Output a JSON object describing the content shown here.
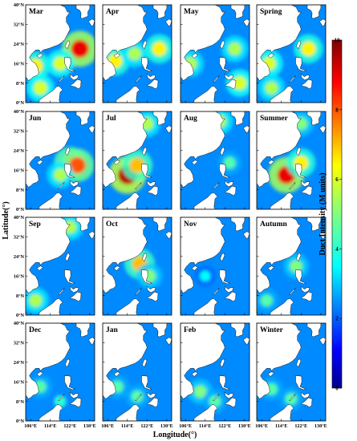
{
  "chart_data": {
    "type": "heatmap",
    "panels": [
      {
        "title": "Mar",
        "hotspots": [
          [
            108,
            15,
            6.5
          ],
          [
            126,
            22,
            9.0
          ],
          [
            118,
            16,
            6.0
          ],
          [
            110,
            6,
            6.0
          ]
        ]
      },
      {
        "title": "Apr",
        "hotspots": [
          [
            109,
            17,
            6.5
          ],
          [
            117,
            20,
            5.5
          ],
          [
            127,
            22,
            6.5
          ]
        ]
      },
      {
        "title": "May",
        "hotspots": [
          [
            108,
            16,
            5.5
          ],
          [
            126,
            22,
            5.5
          ],
          [
            128,
            8,
            6.0
          ]
        ]
      },
      {
        "title": "Spring",
        "hotspots": [
          [
            109,
            16,
            6.0
          ],
          [
            125,
            22,
            6.5
          ],
          [
            110,
            6,
            5.5
          ]
        ]
      },
      {
        "title": "Jun",
        "hotspots": [
          [
            122,
            19,
            7.5
          ],
          [
            125,
            18,
            8.0
          ],
          [
            118,
            14,
            5.5
          ]
        ]
      },
      {
        "title": "Jul",
        "hotspots": [
          [
            114,
            14,
            9.5
          ],
          [
            118,
            18,
            7.0
          ],
          [
            122,
            35,
            5.5
          ]
        ]
      },
      {
        "title": "Aug",
        "hotspots": [
          [
            120,
            36,
            5.5
          ],
          [
            124,
            19,
            4.5
          ]
        ]
      },
      {
        "title": "Summer",
        "hotspots": [
          [
            116,
            14,
            9.0
          ],
          [
            122,
            19,
            6.5
          ],
          [
            122,
            35,
            5.0
          ]
        ]
      },
      {
        "title": "Sep",
        "hotspots": [
          [
            122,
            36,
            5.5
          ],
          [
            108,
            6,
            5.5
          ]
        ]
      },
      {
        "title": "Oct",
        "hotspots": [
          [
            119,
            21,
            7.0
          ],
          [
            123,
            16,
            5.0
          ]
        ]
      },
      {
        "title": "Nov",
        "hotspots": [
          [
            114,
            16,
            3.5
          ]
        ]
      },
      {
        "title": "Autumn",
        "hotspots": [
          [
            120,
            20,
            5.0
          ],
          [
            108,
            6,
            4.5
          ]
        ]
      },
      {
        "title": "Dec",
        "hotspots": [
          [
            110,
            14,
            4.5
          ],
          [
            118,
            8,
            4.0
          ]
        ]
      },
      {
        "title": "Jan",
        "hotspots": [
          [
            110,
            14,
            4.5
          ],
          [
            118,
            10,
            4.5
          ]
        ]
      },
      {
        "title": "Feb",
        "hotspots": [
          [
            112,
            12,
            5.0
          ],
          [
            118,
            8,
            4.5
          ]
        ]
      },
      {
        "title": "Winter",
        "hotspots": [
          [
            110,
            13,
            4.5
          ],
          [
            118,
            9,
            4.5
          ]
        ]
      }
    ],
    "x_ticks": [
      "106°E",
      "114°E",
      "122°E",
      "130°E"
    ],
    "y_ticks": [
      "0°N",
      "8°N",
      "16°N",
      "24°N",
      "32°N",
      "40°N"
    ],
    "xlim": [
      104,
      132
    ],
    "ylim": [
      0,
      40
    ],
    "xlabel": "Longitude(°)",
    "ylabel": "Latitude(°)",
    "colorbar": {
      "label": "Duct  Intensity (M units)",
      "min": 0,
      "max": 10,
      "ticks": [
        "0",
        "2",
        "4",
        "6",
        "8",
        "10"
      ]
    }
  }
}
